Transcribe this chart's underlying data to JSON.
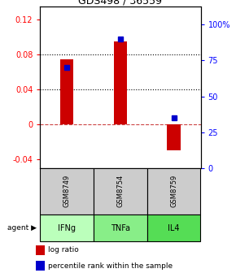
{
  "title": "GDS498 / 36559",
  "samples": [
    "GSM8749",
    "GSM8754",
    "GSM8759"
  ],
  "agents": [
    "IFNg",
    "TNFa",
    "IL4"
  ],
  "log_ratios": [
    0.075,
    0.095,
    -0.03
  ],
  "percentiles": [
    0.7,
    0.9,
    0.35
  ],
  "bar_color": "#cc0000",
  "dot_color": "#0000cc",
  "ylim_left": [
    -0.05,
    0.135
  ],
  "ylim_right": [
    0.0,
    1.125
  ],
  "yticks_left": [
    -0.04,
    0.0,
    0.04,
    0.08,
    0.12
  ],
  "ytick_labels_left": [
    "-0.04",
    "0",
    "0.04",
    "0.08",
    "0.12"
  ],
  "yticks_right": [
    0.0,
    0.25,
    0.5,
    0.75,
    1.0
  ],
  "ytick_labels_right": [
    "0",
    "25",
    "50",
    "75",
    "100%"
  ],
  "hlines_dotted": [
    0.04,
    0.08
  ],
  "hline_dashed": 0.0,
  "sample_box_color": "#cccccc",
  "agent_colors": [
    "#bbffbb",
    "#88ee88",
    "#55dd55"
  ],
  "legend_log_ratio": "log ratio",
  "legend_percentile": "percentile rank within the sample",
  "bar_width": 0.25
}
